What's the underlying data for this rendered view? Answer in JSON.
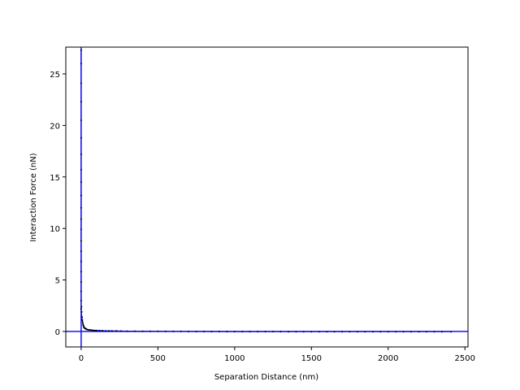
{
  "chart_data": {
    "type": "scatter",
    "title": "",
    "xlabel": "Separation Distance (nm)",
    "ylabel": "Interaction Force (nN)",
    "xlim": [
      -100,
      2520
    ],
    "ylim": [
      -1.5,
      27.6
    ],
    "xticks": [
      0,
      500,
      1000,
      1500,
      2000,
      2500
    ],
    "yticks": [
      0,
      5,
      10,
      15,
      20,
      25
    ],
    "reference_lines": {
      "x": 0,
      "y": 0
    },
    "grid": false,
    "colors": {
      "points": "#000000",
      "fit": "#0000ff",
      "reference": "#0000ff"
    },
    "series": [
      {
        "points": [
          [
            0,
            27.3
          ],
          [
            0,
            26.0
          ],
          [
            0,
            24.1
          ],
          [
            0,
            22.3
          ],
          [
            0,
            20.5
          ],
          [
            0,
            18.8
          ],
          [
            0,
            17.2
          ],
          [
            0,
            15.7
          ],
          [
            0,
            14.5
          ],
          [
            0,
            13.2
          ],
          [
            0,
            12.0
          ],
          [
            0,
            10.9
          ],
          [
            0,
            9.9
          ],
          [
            0,
            8.8
          ],
          [
            0,
            7.8
          ],
          [
            0,
            6.8
          ],
          [
            0,
            5.8
          ],
          [
            0,
            4.8
          ],
          [
            0,
            3.9
          ],
          [
            0,
            3.0
          ],
          [
            0,
            2.2
          ],
          [
            2,
            2.4
          ],
          [
            4,
            1.9
          ],
          [
            6,
            1.4
          ],
          [
            8,
            1.1
          ],
          [
            10,
            0.9
          ],
          [
            12,
            0.7
          ],
          [
            14,
            0.6
          ],
          [
            16,
            0.5
          ],
          [
            18,
            0.4
          ],
          [
            20,
            0.35
          ],
          [
            25,
            0.3
          ],
          [
            30,
            0.25
          ],
          [
            35,
            0.2
          ],
          [
            40,
            0.18
          ],
          [
            50,
            0.15
          ],
          [
            60,
            0.13
          ],
          [
            70,
            0.12
          ],
          [
            80,
            0.11
          ],
          [
            90,
            0.1
          ],
          [
            100,
            0.1
          ],
          [
            120,
            0.08
          ],
          [
            140,
            0.08
          ],
          [
            160,
            0.06
          ],
          [
            180,
            0.06
          ],
          [
            200,
            0.05
          ],
          [
            230,
            0.05
          ],
          [
            260,
            0.04
          ],
          [
            300,
            0.03
          ],
          [
            350,
            0.03
          ],
          [
            400,
            0.02
          ],
          [
            450,
            0.02
          ],
          [
            500,
            0.02
          ],
          [
            550,
            0.01
          ],
          [
            600,
            0.01
          ],
          [
            650,
            0.01
          ],
          [
            700,
            0.0
          ],
          [
            750,
            0.0
          ],
          [
            800,
            0.0
          ],
          [
            850,
            0.0
          ],
          [
            900,
            0.0
          ],
          [
            950,
            -0.01
          ],
          [
            1000,
            -0.01
          ],
          [
            1050,
            -0.01
          ],
          [
            1100,
            -0.01
          ],
          [
            1150,
            -0.01
          ],
          [
            1200,
            -0.01
          ],
          [
            1250,
            -0.01
          ],
          [
            1300,
            -0.01
          ],
          [
            1350,
            -0.02
          ],
          [
            1400,
            -0.02
          ],
          [
            1450,
            -0.02
          ],
          [
            1500,
            -0.02
          ],
          [
            1550,
            -0.02
          ],
          [
            1600,
            -0.02
          ],
          [
            1650,
            -0.02
          ],
          [
            1700,
            -0.02
          ],
          [
            1750,
            -0.02
          ],
          [
            1800,
            -0.02
          ],
          [
            1850,
            -0.02
          ],
          [
            1900,
            -0.02
          ],
          [
            1950,
            -0.02
          ],
          [
            2000,
            -0.02
          ],
          [
            2050,
            -0.02
          ],
          [
            2100,
            -0.02
          ],
          [
            2150,
            -0.02
          ],
          [
            2200,
            -0.02
          ],
          [
            2250,
            -0.02
          ],
          [
            2300,
            -0.02
          ],
          [
            2350,
            -0.02
          ],
          [
            2410,
            -0.02
          ]
        ],
        "fit": [
          [
            0,
            27.4
          ],
          [
            0,
            2.0
          ],
          [
            5,
            1.3
          ],
          [
            10,
            0.8
          ],
          [
            20,
            0.4
          ],
          [
            40,
            0.2
          ],
          [
            80,
            0.12
          ],
          [
            150,
            0.07
          ],
          [
            300,
            0.03
          ],
          [
            600,
            0.01
          ],
          [
            1000,
            -0.01
          ],
          [
            1500,
            -0.02
          ],
          [
            2000,
            -0.02
          ],
          [
            2410,
            -0.02
          ]
        ]
      }
    ]
  }
}
